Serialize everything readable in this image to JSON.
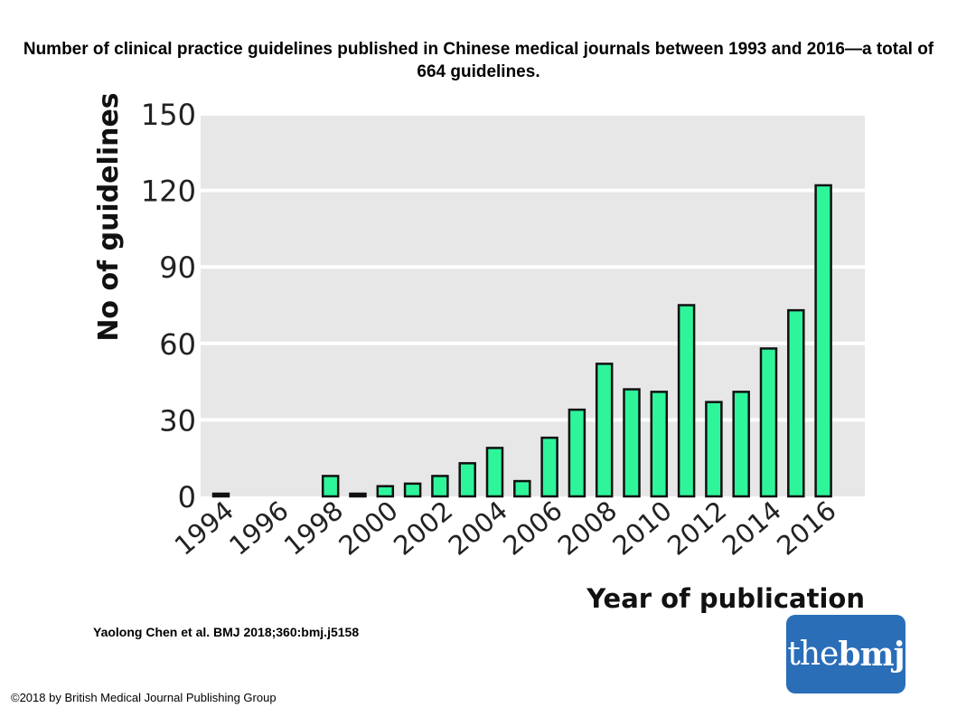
{
  "title": "Number of clinical practice guidelines published in Chinese medical journals between 1993 and 2016—a total of 664 guidelines.",
  "citation": "Yaolong Chen et al. BMJ 2018;360:bmj.j5158",
  "copyright": "©2018 by British Medical Journal Publishing Group",
  "logo": {
    "part1": "the",
    "part2": "bmj"
  },
  "colors": {
    "bar_fill": "#2ef59a",
    "bar_stroke": "#111111",
    "plot_bg": "#e7e7e7",
    "grid": "#ffffff",
    "logo_bg": "#2a6eb8"
  },
  "chart_data": {
    "type": "bar",
    "xlabel": "Year of publication",
    "ylabel": "No of guidelines",
    "ylim": [
      0,
      150
    ],
    "yticks": [
      0,
      30,
      60,
      90,
      120,
      150
    ],
    "xticks": [
      "1994",
      "1996",
      "1998",
      "2000",
      "2002",
      "2004",
      "2006",
      "2008",
      "2010",
      "2012",
      "2014",
      "2016"
    ],
    "grid": true,
    "categories": [
      "1994",
      "1995",
      "1996",
      "1997",
      "1998",
      "1999",
      "2000",
      "2001",
      "2002",
      "2003",
      "2004",
      "2005",
      "2006",
      "2007",
      "2008",
      "2009",
      "2010",
      "2011",
      "2012",
      "2013",
      "2014",
      "2015",
      "2016"
    ],
    "values": [
      1,
      0,
      0,
      0,
      8,
      1,
      4,
      5,
      8,
      13,
      19,
      6,
      23,
      34,
      52,
      42,
      41,
      75,
      37,
      41,
      58,
      73,
      122
    ]
  }
}
